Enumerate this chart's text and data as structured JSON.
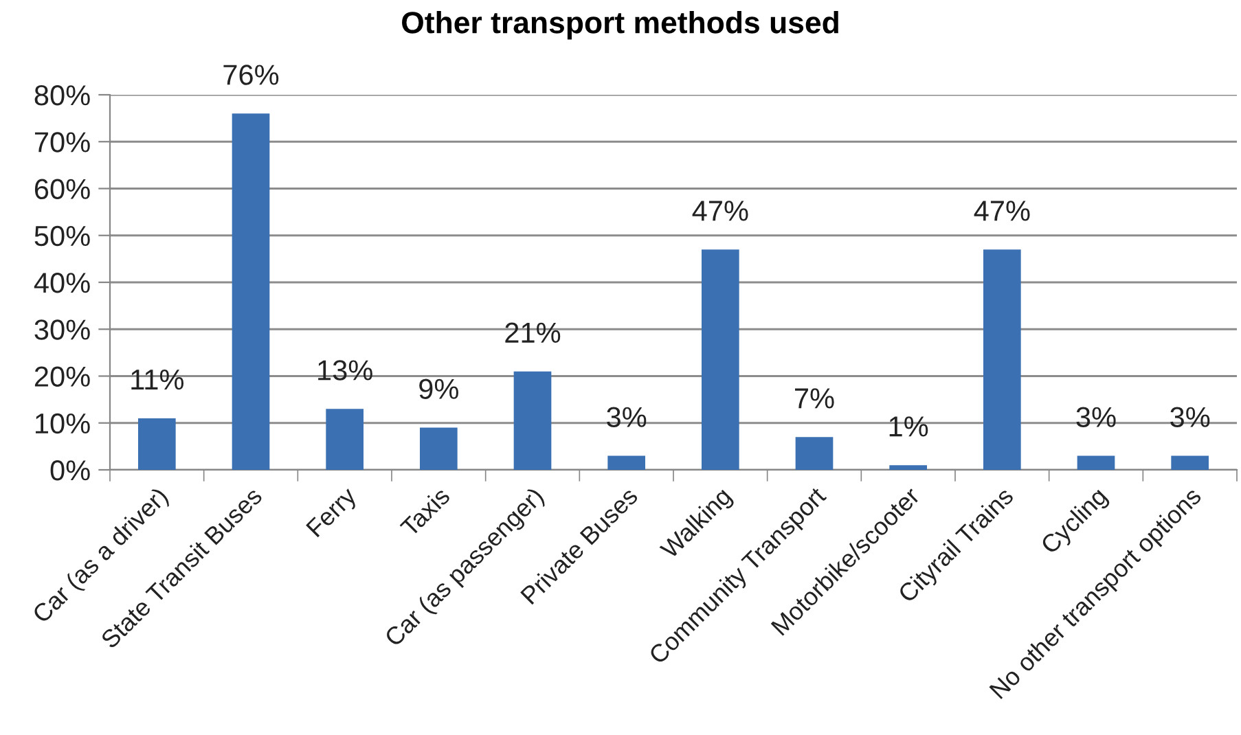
{
  "chart_data": {
    "type": "bar",
    "title": "Other transport methods used",
    "categories": [
      "Car (as a driver)",
      "State Transit Buses",
      "Ferry",
      "Taxis",
      "Car (as passenger)",
      "Private Buses",
      "Walking",
      "Community Transport",
      "Motorbike/scooter",
      "Cityrail Trains",
      "Cycling",
      "No other transport options"
    ],
    "values": [
      11,
      76,
      13,
      9,
      21,
      3,
      47,
      7,
      1,
      47,
      3,
      3
    ],
    "value_labels": [
      "11%",
      "76%",
      "13%",
      "9%",
      "21%",
      "3%",
      "47%",
      "7%",
      "1%",
      "47%",
      "3%",
      "3%"
    ],
    "color": "#3b70b3",
    "ylim": [
      0,
      80
    ],
    "yticks": [
      {
        "value": 0,
        "label": "0%"
      },
      {
        "value": 10,
        "label": "10%"
      },
      {
        "value": 20,
        "label": "20%"
      },
      {
        "value": 30,
        "label": "30%"
      },
      {
        "value": 40,
        "label": "40%"
      },
      {
        "value": 50,
        "label": "50%"
      },
      {
        "value": 60,
        "label": "60%"
      },
      {
        "value": 70,
        "label": "70%"
      },
      {
        "value": 80,
        "label": "80%"
      }
    ],
    "grid": "y"
  }
}
